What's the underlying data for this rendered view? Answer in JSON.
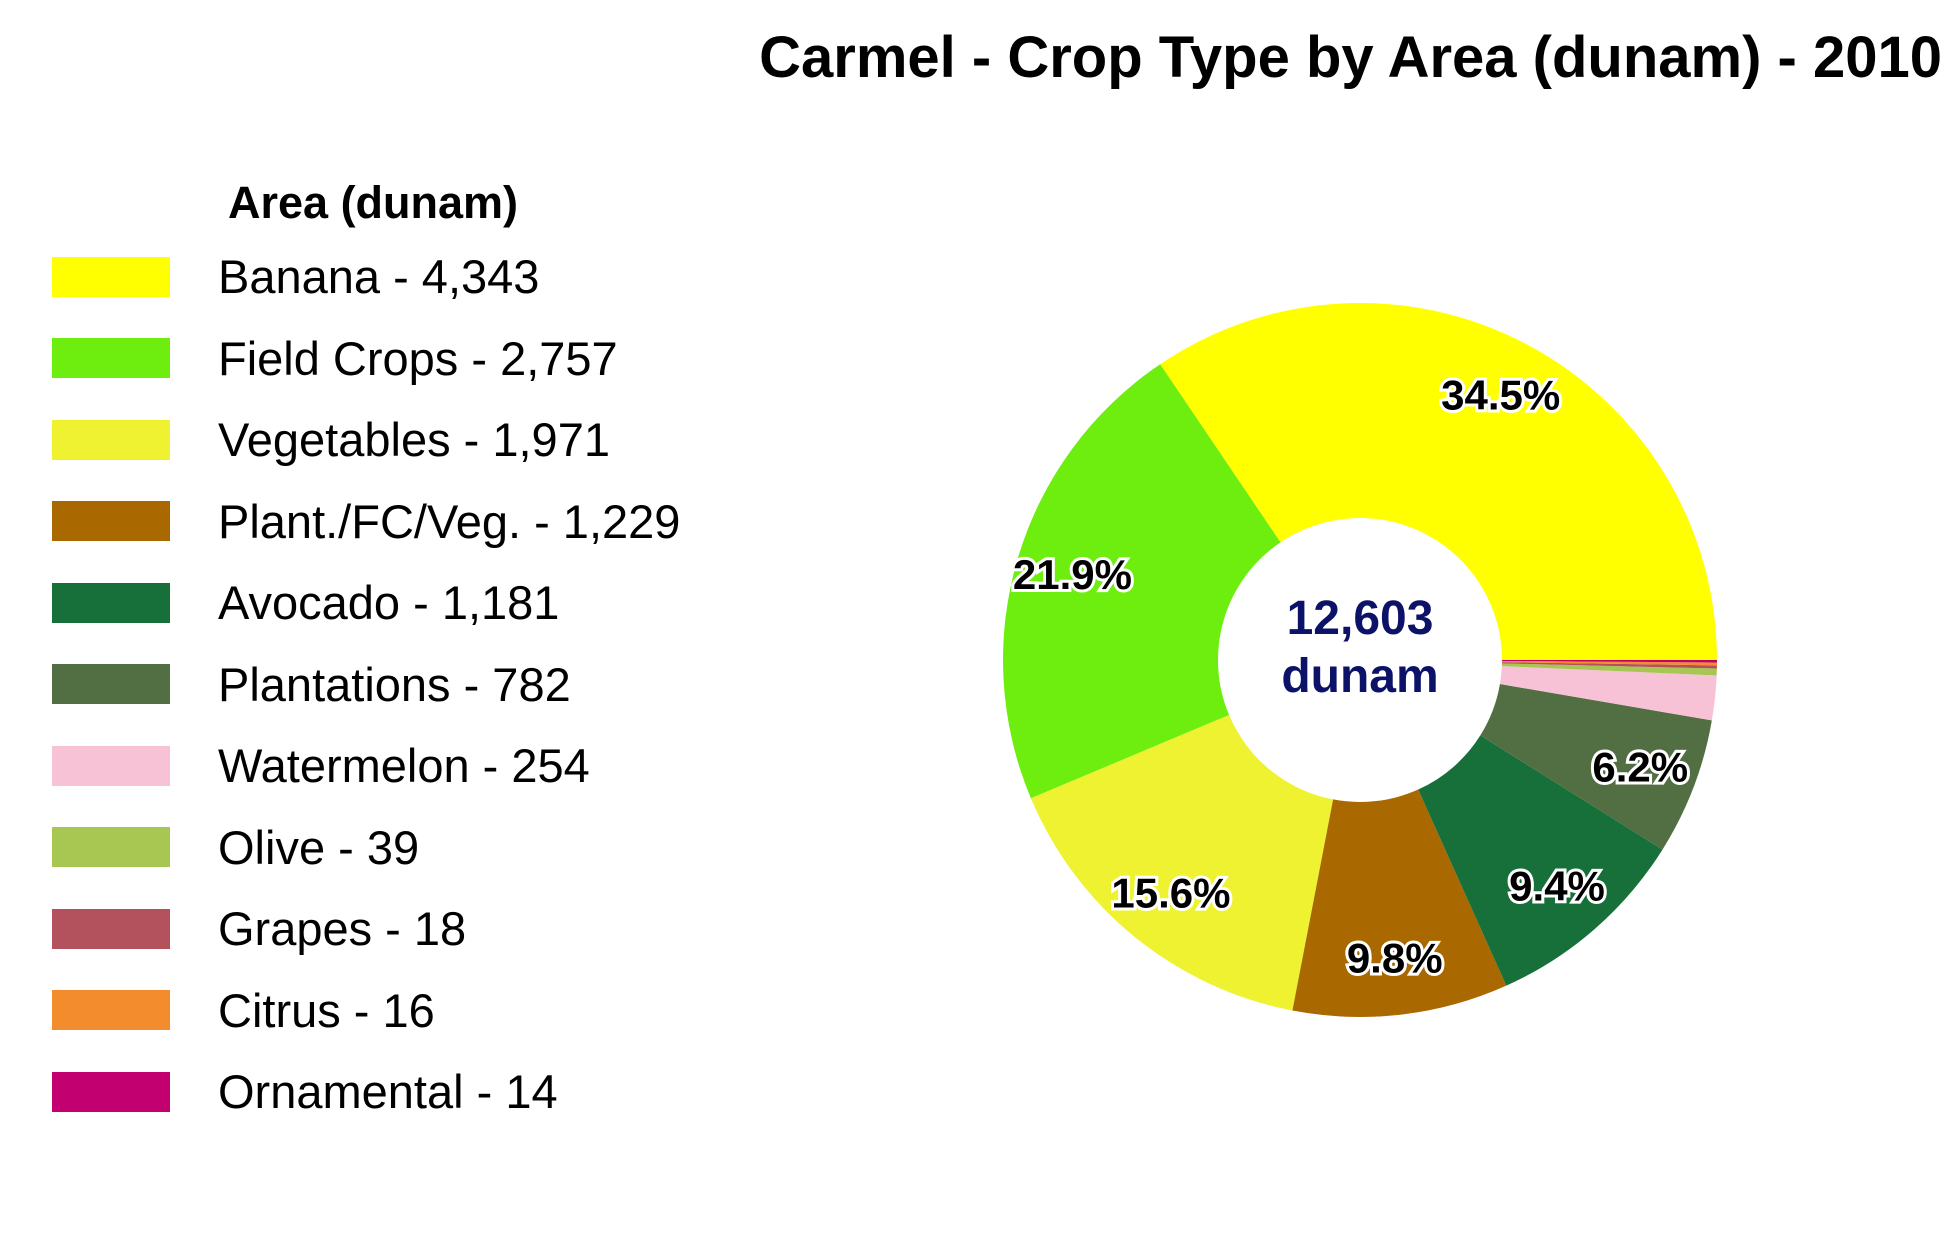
{
  "chart_data": {
    "type": "pie",
    "title": "Carmel - Crop Type by Area (dunam) - 2010",
    "legend_title": "Area (dunam)",
    "legend_position": "left",
    "center_value": "12,603",
    "center_unit": "dunam",
    "start_direction": "east",
    "direction": "counterclockwise",
    "slices": [
      {
        "name": "Banana",
        "value": 4343,
        "legend_label": "Banana - 4,343",
        "color": "#FFFF00",
        "label": "34.5%"
      },
      {
        "name": "Field Crops",
        "value": 2757,
        "legend_label": "Field Crops - 2,757",
        "color": "#6EEE0F",
        "label": "21.9%"
      },
      {
        "name": "Vegetables",
        "value": 1971,
        "legend_label": "Vegetables - 1,971",
        "color": "#EEF230",
        "label": "15.6%"
      },
      {
        "name": "Plant./FC/Veg.",
        "value": 1229,
        "legend_label": "Plant./FC/Veg. - 1,229",
        "color": "#AA6800",
        "label": "9.8%"
      },
      {
        "name": "Avocado",
        "value": 1181,
        "legend_label": "Avocado - 1,181",
        "color": "#17703A",
        "label": "9.4%"
      },
      {
        "name": "Plantations",
        "value": 782,
        "legend_label": "Plantations - 782",
        "color": "#526F43",
        "label": "6.2%"
      },
      {
        "name": "Watermelon",
        "value": 254,
        "legend_label": "Watermelon - 254",
        "color": "#F8C2D6",
        "label": ""
      },
      {
        "name": "Olive",
        "value": 39,
        "legend_label": "Olive - 39",
        "color": "#A8C752",
        "label": ""
      },
      {
        "name": "Grapes",
        "value": 18,
        "legend_label": "Grapes - 18",
        "color": "#B3525C",
        "label": ""
      },
      {
        "name": "Citrus",
        "value": 16,
        "legend_label": "Citrus - 16",
        "color": "#F28C2C",
        "label": ""
      },
      {
        "name": "Ornamental",
        "value": 14,
        "legend_label": "Ornamental - 14",
        "color": "#C2006F",
        "label": ""
      }
    ]
  }
}
